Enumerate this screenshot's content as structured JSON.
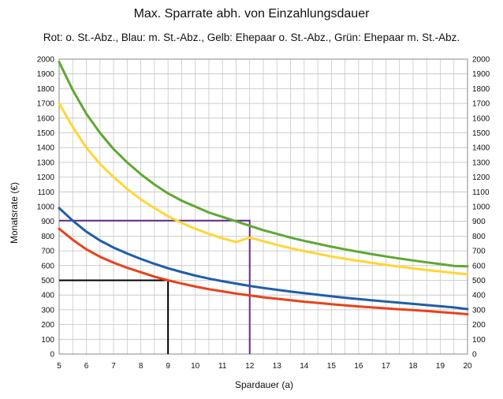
{
  "chart_data": {
    "type": "line",
    "title": "Max. Sparrate abh. von Einzahlungsdauer",
    "subtitle": "Rot: o. St.-Abz., Blau: m. St.-Abz., Gelb: Ehepaar o. St.-Abz., Grün: Ehepaar m. St.-Abz.",
    "xlabel": "Spardauer (a)",
    "ylabel": "Monatsrate (€)",
    "xlim": [
      5,
      20
    ],
    "ylim": [
      0,
      2000
    ],
    "x_ticks": [
      5,
      6,
      7,
      8,
      9,
      10,
      11,
      12,
      13,
      14,
      15,
      16,
      17,
      18,
      19,
      20
    ],
    "y_ticks": [
      0,
      100,
      200,
      300,
      400,
      500,
      600,
      700,
      800,
      900,
      1000,
      1100,
      1200,
      1300,
      1400,
      1500,
      1600,
      1700,
      1800,
      1900,
      2000
    ],
    "grid": true,
    "secondary_y_axis": true,
    "x": [
      5,
      5.5,
      6,
      6.5,
      7,
      7.5,
      8,
      8.5,
      9,
      9.5,
      10,
      10.5,
      11,
      11.5,
      12,
      12.5,
      13,
      13.5,
      14,
      14.5,
      15,
      15.5,
      16,
      16.5,
      17,
      17.5,
      18,
      18.5,
      19,
      19.5,
      20
    ],
    "series": [
      {
        "color": "#e8421a",
        "values": [
          850,
          775,
          710,
          660,
          620,
          585,
          555,
          525,
          500,
          478,
          458,
          440,
          425,
          410,
          398,
          385,
          375,
          365,
          355,
          347,
          338,
          330,
          323,
          316,
          310,
          304,
          298,
          292,
          285,
          278,
          270
        ]
      },
      {
        "color": "#1f5ea8",
        "values": [
          990,
          905,
          830,
          770,
          722,
          682,
          645,
          612,
          582,
          556,
          532,
          512,
          494,
          478,
          462,
          448,
          436,
          424,
          413,
          402,
          392,
          382,
          373,
          364,
          356,
          348,
          340,
          332,
          324,
          316,
          305
        ]
      },
      {
        "color": "#ffd633",
        "values": [
          1700,
          1540,
          1400,
          1290,
          1200,
          1120,
          1050,
          990,
          935,
          890,
          850,
          815,
          785,
          760,
          790,
          765,
          740,
          718,
          698,
          680,
          662,
          646,
          632,
          618,
          605,
          593,
          581,
          570,
          560,
          550,
          540
        ]
      },
      {
        "color": "#5fa832",
        "values": [
          1980,
          1790,
          1630,
          1500,
          1390,
          1300,
          1220,
          1150,
          1090,
          1040,
          1000,
          960,
          930,
          900,
          870,
          840,
          815,
          790,
          768,
          748,
          728,
          710,
          693,
          677,
          662,
          648,
          635,
          622,
          610,
          598,
          595
        ]
      }
    ],
    "reference_lines": [
      {
        "color": "#000000",
        "x": 9,
        "y": 500
      },
      {
        "color": "#6a2a8a",
        "x": 12,
        "y": 905
      }
    ]
  }
}
